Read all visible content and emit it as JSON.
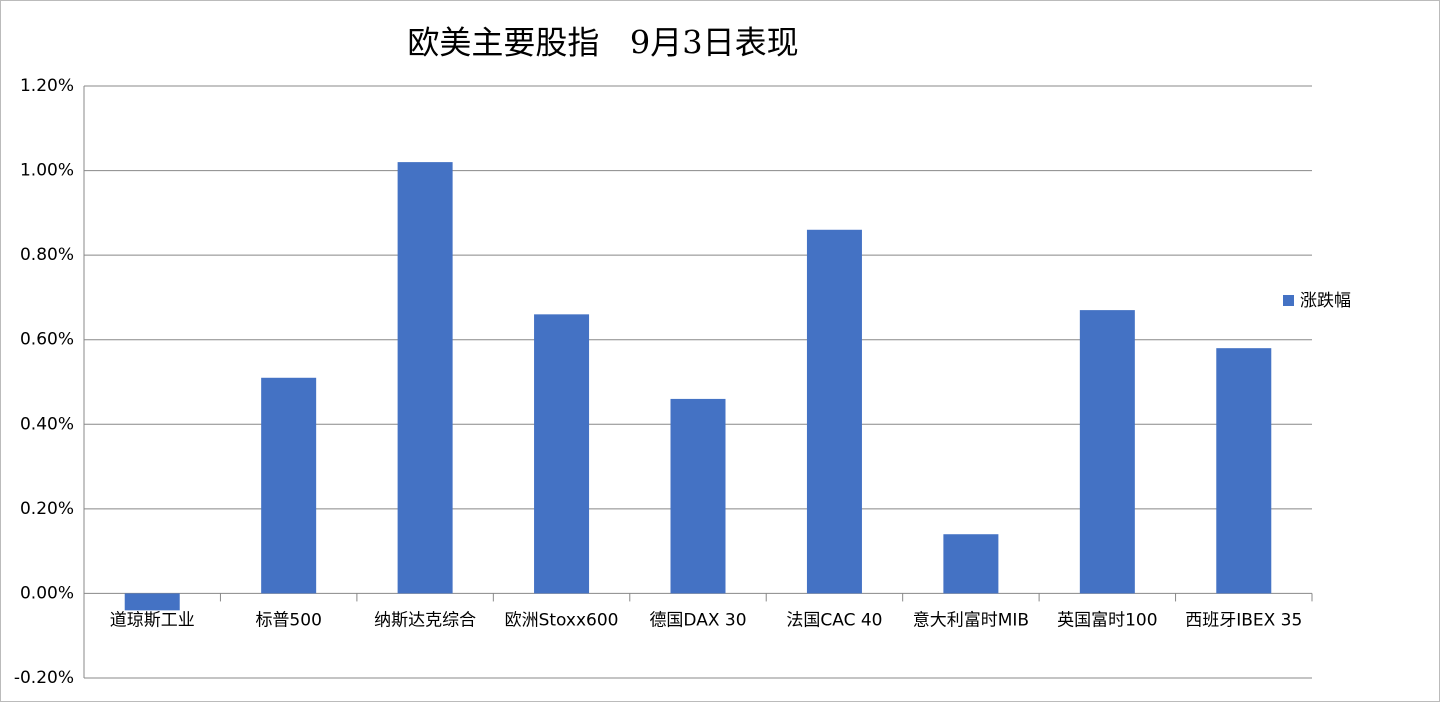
{
  "chart_data": {
    "type": "bar",
    "title": "欧美主要股指   9月3日表现",
    "categories": [
      "道琼斯工业",
      "标普500",
      "纳斯达克综合",
      "欧洲Stoxx600",
      "德国DAX 30",
      "法国CAC 40",
      "意大利富时MIB",
      "英国富时100",
      "西班牙IBEX 35"
    ],
    "series": [
      {
        "name": "涨跌幅",
        "color": "#4472c4",
        "values": [
          -0.04,
          0.51,
          1.02,
          0.66,
          0.46,
          0.86,
          0.14,
          0.67,
          0.58
        ]
      }
    ],
    "ylim": [
      -0.2,
      1.2
    ],
    "yticks": [
      {
        "value": -0.2,
        "label": "-0.20%"
      },
      {
        "value": 0,
        "label": "0.00%"
      },
      {
        "value": 0.2,
        "label": "0.20%"
      },
      {
        "value": 0.4,
        "label": "0.40%"
      },
      {
        "value": 0.6,
        "label": "0.60%"
      },
      {
        "value": 0.8,
        "label": "0.80%"
      },
      {
        "value": 1.0,
        "label": "1.00%"
      },
      {
        "value": 1.2,
        "label": "1.20%"
      }
    ],
    "grid": true,
    "legend": "right"
  }
}
